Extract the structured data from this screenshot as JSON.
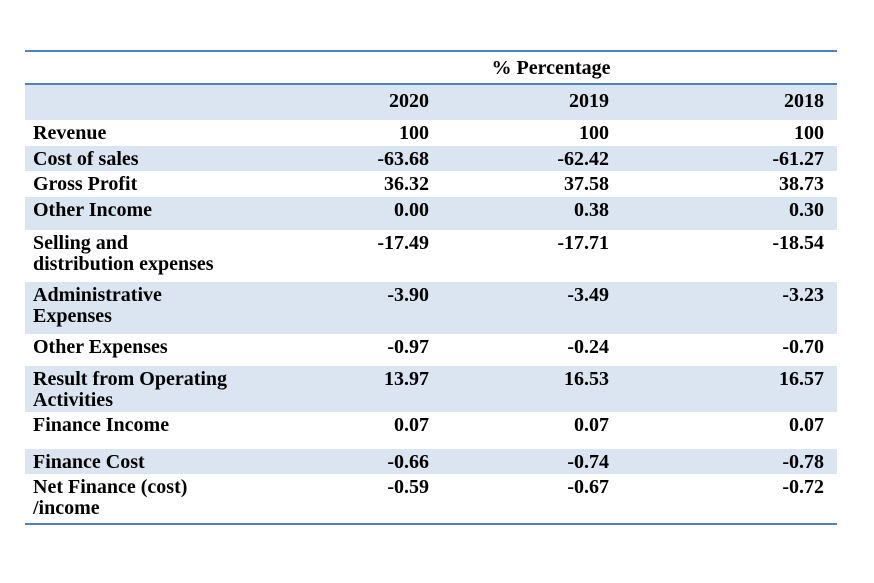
{
  "document": {
    "title": "% Percentage",
    "years": [
      "2020",
      "2019",
      "2018"
    ],
    "rows": [
      {
        "label": "Revenue",
        "values": [
          "100",
          "100",
          "100"
        ]
      },
      {
        "label": "Cost of sales",
        "values": [
          "-63.68",
          "-62.42",
          "-61.27"
        ]
      },
      {
        "label": "Gross Profit",
        "values": [
          "36.32",
          "37.58",
          "38.73"
        ]
      },
      {
        "label": "Other Income",
        "values": [
          "0.00",
          "0.38",
          "0.30"
        ]
      },
      {
        "label": "Selling and\ndistribution expenses",
        "values": [
          "-17.49",
          "-17.71",
          "-18.54"
        ]
      },
      {
        "label": "Administrative\nExpenses",
        "values": [
          "-3.90",
          "-3.49",
          "-3.23"
        ]
      },
      {
        "label": "Other Expenses",
        "values": [
          "-0.97",
          "-0.24",
          "-0.70"
        ]
      },
      {
        "label": "Result from Operating\nActivities",
        "values": [
          "13.97",
          "16.53",
          "16.57"
        ]
      },
      {
        "label": "Finance Income",
        "values": [
          "0.07",
          "0.07",
          "0.07"
        ]
      },
      {
        "label": "Finance Cost",
        "values": [
          "-0.66",
          "-0.74",
          "-0.78"
        ]
      },
      {
        "label": "Net Finance (cost)\n/income",
        "values": [
          "-0.59",
          "-0.67",
          "-0.72"
        ]
      }
    ],
    "colors": {
      "accent_border": "#4f81bd",
      "row_band": "#dbe5f1",
      "text": "#000000"
    }
  }
}
